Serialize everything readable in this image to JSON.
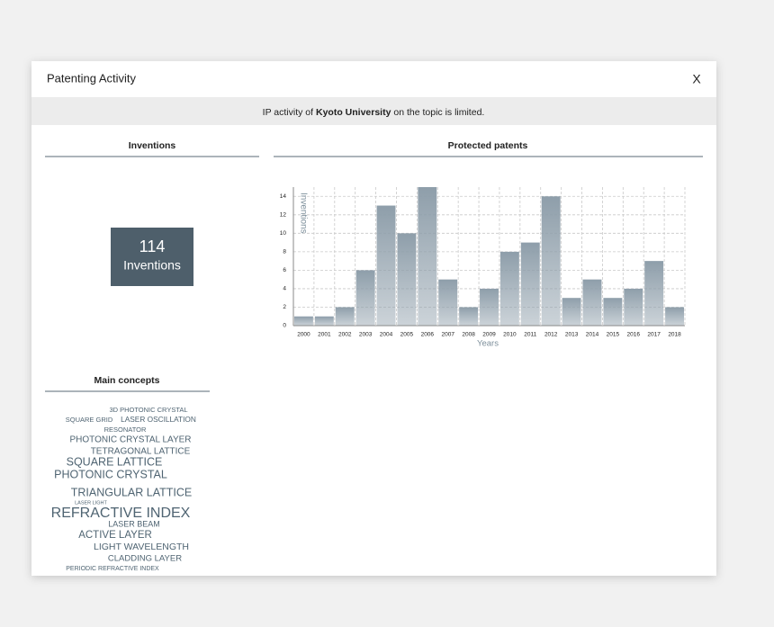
{
  "header": {
    "title": "Patenting Activity",
    "close": "X"
  },
  "banner": {
    "prefix": "IP activity of",
    "organization": "Kyoto University",
    "suffix": "on the topic is limited."
  },
  "inventions": {
    "title": "Inventions",
    "count": 114,
    "label": "Inventions"
  },
  "chart_data": {
    "type": "bar",
    "title": "Protected patents",
    "x_label": "Years",
    "y_label": "Inventions",
    "categories": [
      "2000",
      "2001",
      "2002",
      "2003",
      "2004",
      "2005",
      "2006",
      "2007",
      "2008",
      "2009",
      "2010",
      "2011",
      "2012",
      "2013",
      "2014",
      "2015",
      "2016",
      "2017",
      "2018"
    ],
    "values": [
      1,
      1,
      2,
      6,
      13,
      10,
      15,
      5,
      2,
      4,
      8,
      9,
      14,
      3,
      5,
      3,
      4,
      7,
      2
    ],
    "color": "#8e9eaa",
    "ylim": [
      0,
      15
    ],
    "yticks": [
      0,
      2,
      4,
      6,
      8,
      10,
      12,
      14
    ],
    "grid": true
  },
  "concepts": {
    "title": "Main concepts",
    "terms": [
      "3D PHOTONIC CRYSTAL",
      "SQUARE GRID",
      "LASER OSCILLATION",
      "RESONATOR",
      "PHOTONIC CRYSTAL LAYER",
      "TETRAGONAL LATTICE",
      "SQUARE LATTICE",
      "PHOTONIC CRYSTAL",
      "TRIANGULAR LATTICE",
      "LASER LIGHT",
      "REFRACTIVE INDEX",
      "LASER BEAM",
      "ACTIVE LAYER",
      "LIGHT WAVELENGTH",
      "CLADDING LAYER",
      "PERIODIC REFRACTIVE INDEX"
    ]
  }
}
